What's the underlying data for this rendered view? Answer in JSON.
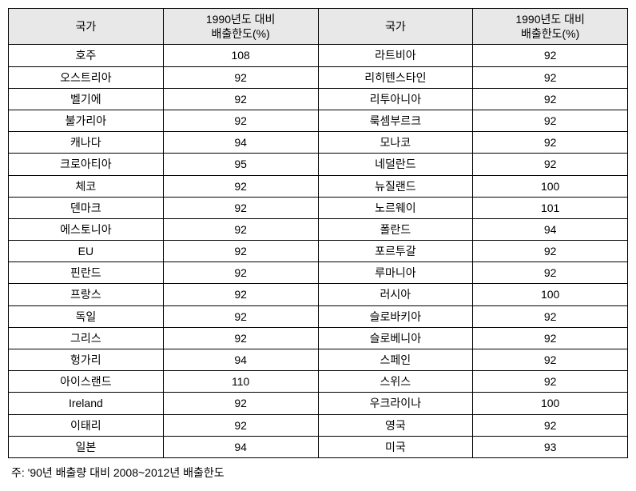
{
  "table": {
    "headers": {
      "country": "국가",
      "emission_limit": "1990년도 대비\n배출한도(%)"
    },
    "rows": [
      {
        "c1": "호주",
        "v1": "108",
        "c2": "라트비아",
        "v2": "92"
      },
      {
        "c1": "오스트리아",
        "v1": "92",
        "c2": "리히텐스타인",
        "v2": "92"
      },
      {
        "c1": "벨기에",
        "v1": "92",
        "c2": "리투아니아",
        "v2": "92"
      },
      {
        "c1": "불가리아",
        "v1": "92",
        "c2": "룩셈부르크",
        "v2": "92"
      },
      {
        "c1": "캐나다",
        "v1": "94",
        "c2": "모나코",
        "v2": "92"
      },
      {
        "c1": "크로아티아",
        "v1": "95",
        "c2": "네덜란드",
        "v2": "92"
      },
      {
        "c1": "체코",
        "v1": "92",
        "c2": "뉴질랜드",
        "v2": "100"
      },
      {
        "c1": "덴마크",
        "v1": "92",
        "c2": "노르웨이",
        "v2": "101"
      },
      {
        "c1": "에스토니아",
        "v1": "92",
        "c2": "폴란드",
        "v2": "94"
      },
      {
        "c1": "EU",
        "v1": "92",
        "c2": "포르투갈",
        "v2": "92"
      },
      {
        "c1": "핀란드",
        "v1": "92",
        "c2": "루마니아",
        "v2": "92"
      },
      {
        "c1": "프랑스",
        "v1": "92",
        "c2": "러시아",
        "v2": "100"
      },
      {
        "c1": "독일",
        "v1": "92",
        "c2": "슬로바키아",
        "v2": "92"
      },
      {
        "c1": "그리스",
        "v1": "92",
        "c2": "슬로베니아",
        "v2": "92"
      },
      {
        "c1": "헝가리",
        "v1": "94",
        "c2": "스페인",
        "v2": "92"
      },
      {
        "c1": "아이스랜드",
        "v1": "110",
        "c2": "스위스",
        "v2": "92"
      },
      {
        "c1": "Ireland",
        "v1": "92",
        "c2": "우크라이나",
        "v2": "100"
      },
      {
        "c1": "이태리",
        "v1": "92",
        "c2": "영국",
        "v2": "92"
      },
      {
        "c1": "일본",
        "v1": "94",
        "c2": "미국",
        "v2": "93"
      }
    ]
  },
  "footnote": "주: '90년 배출량 대비 2008~2012년 배출한도"
}
